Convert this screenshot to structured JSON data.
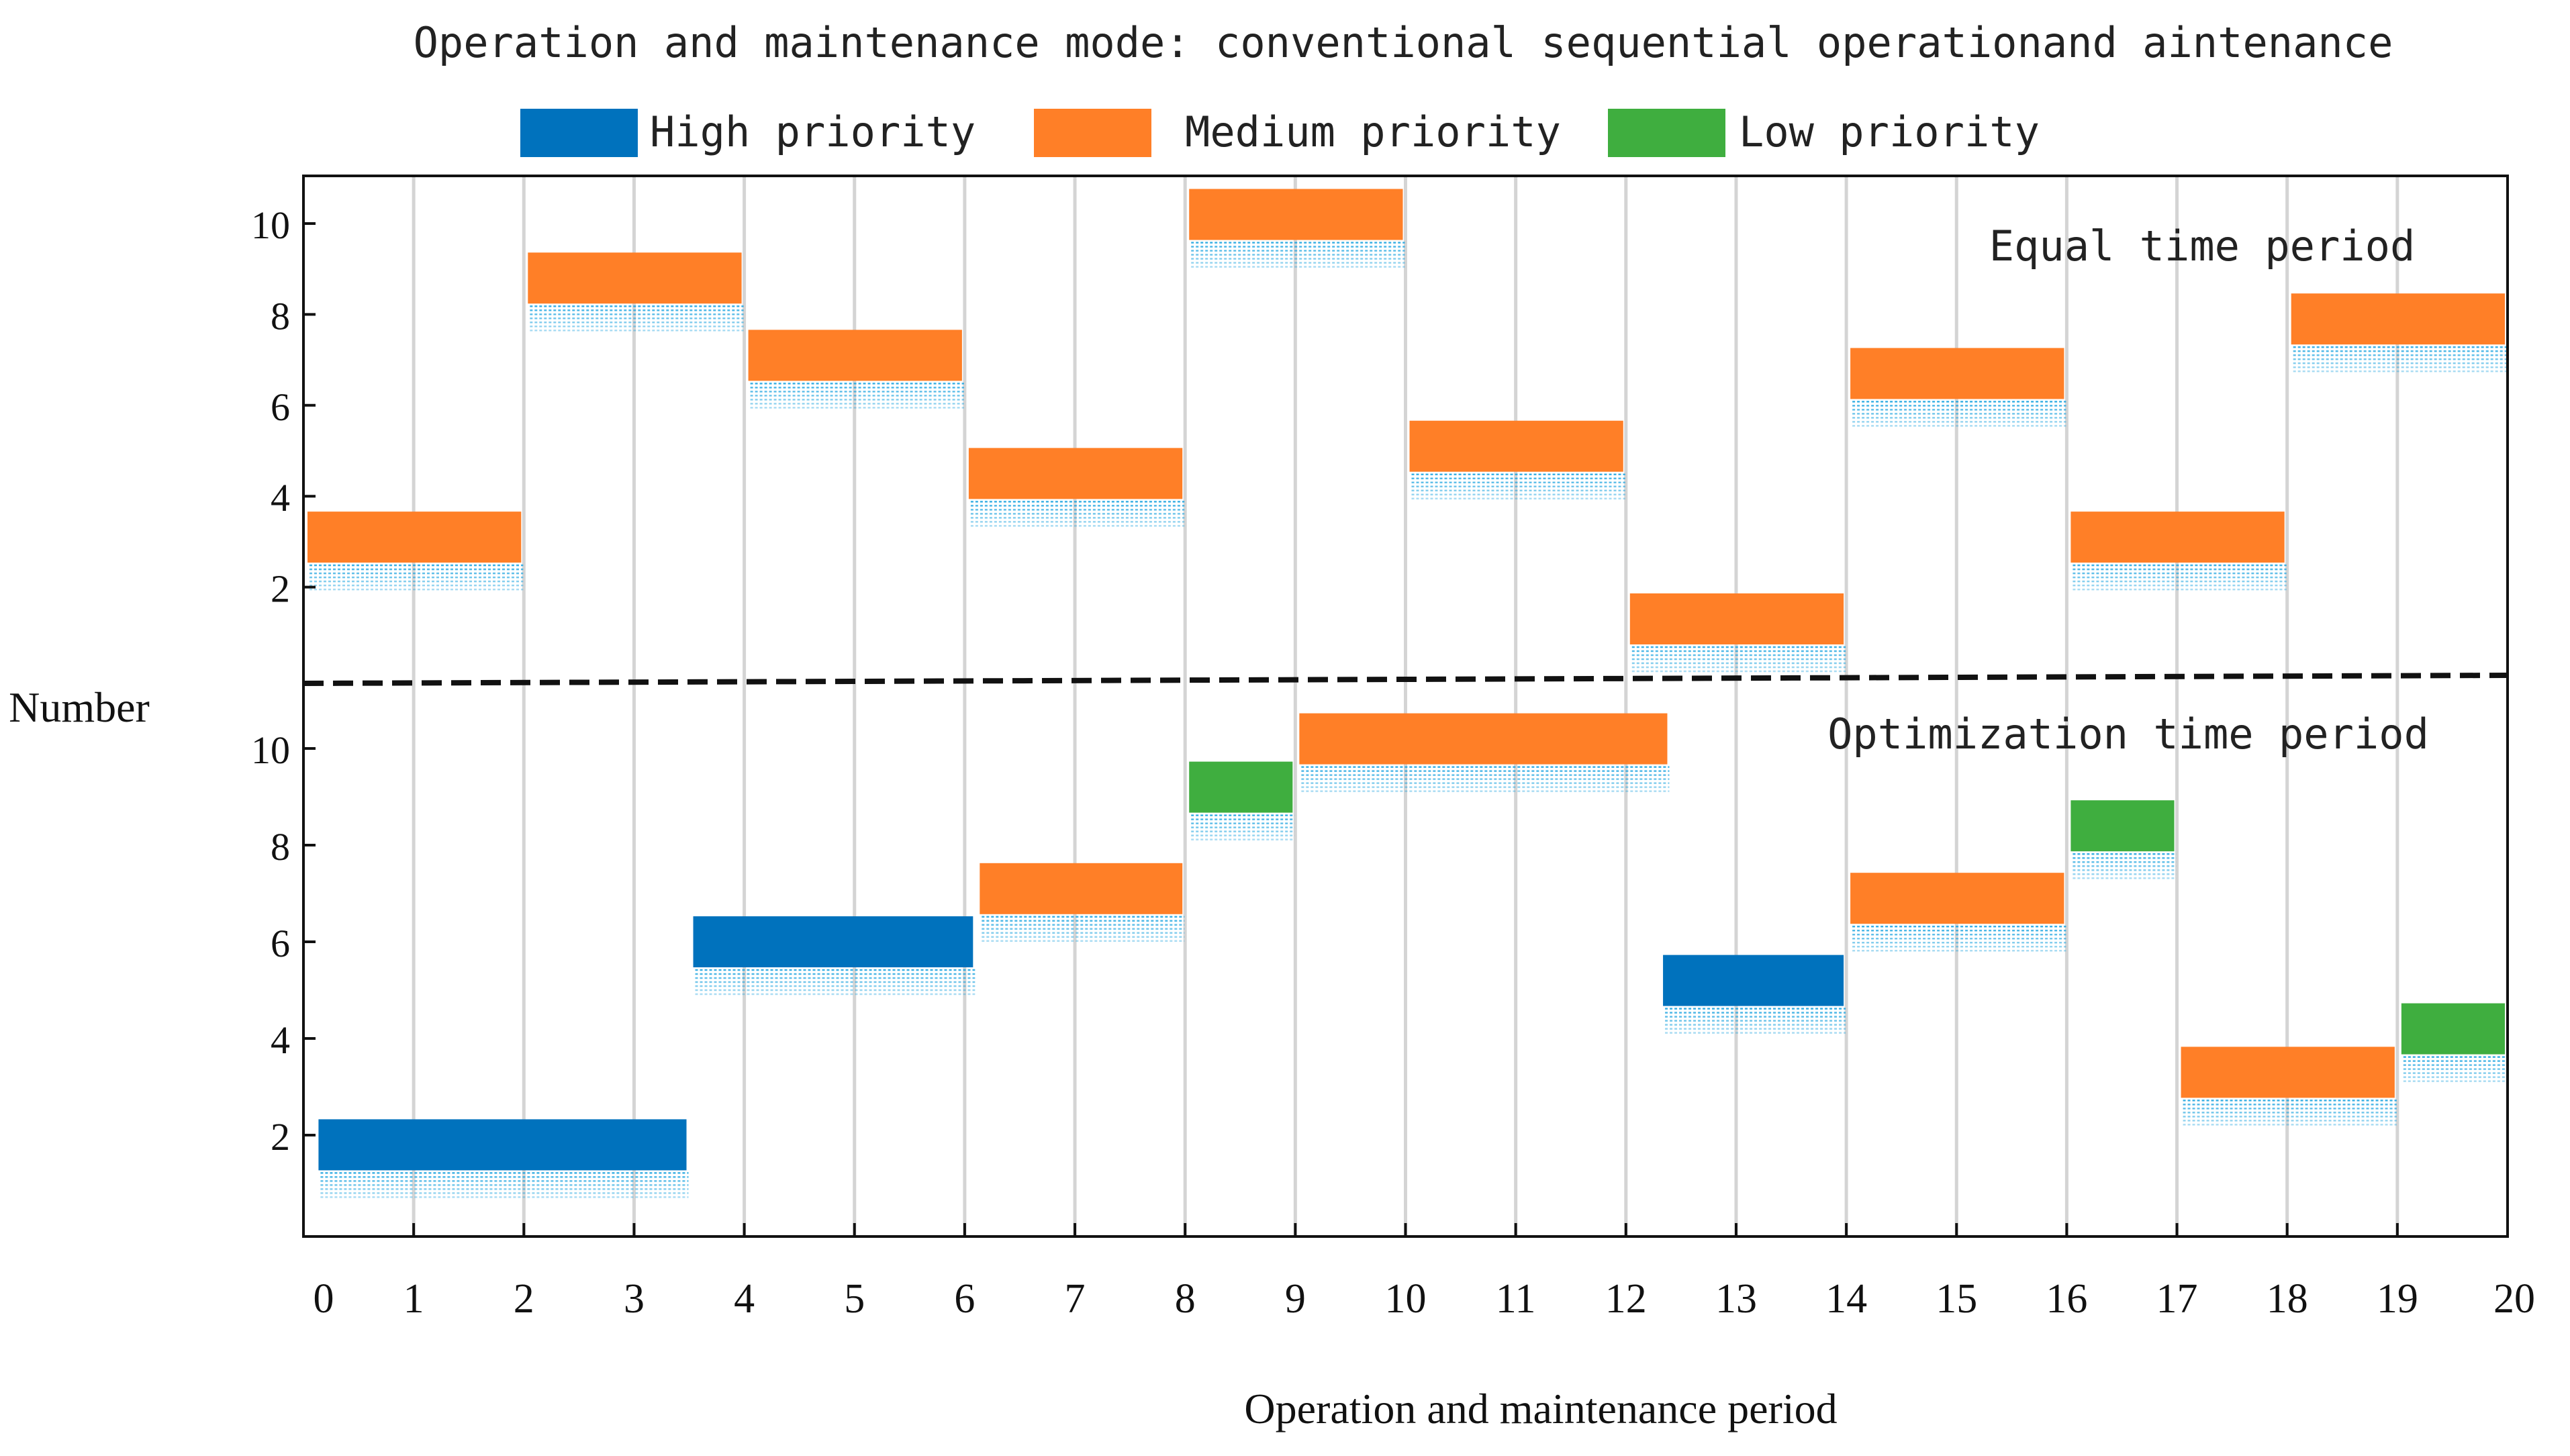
{
  "chart_data": {
    "type": "gantt",
    "title": "Operation and maintenance mode: conventional sequential operationand aintenance",
    "xlabel": "Operation and maintenance period",
    "ylabel": "Number",
    "xlim": [
      0,
      20
    ],
    "x_ticks": [
      "0",
      "1",
      "2",
      "3",
      "4",
      "5",
      "6",
      "7",
      "8",
      "9",
      "10",
      "11",
      "12",
      "13",
      "14",
      "15",
      "16",
      "17",
      "18",
      "19",
      "20"
    ],
    "colors": {
      "high": "#0072BD",
      "medium": "#FF7F27",
      "low": "#3FAE3F",
      "shadow": "#1AA3E0"
    },
    "legend": [
      {
        "key": "high",
        "label": "High priority"
      },
      {
        "key": "medium",
        "label": "Medium priority"
      },
      {
        "key": "low",
        "label": "Low priority"
      }
    ],
    "panels": [
      {
        "label": "Equal time period",
        "ylim": [
          0,
          11
        ],
        "y_ticks": [
          "2",
          "4",
          "6",
          "8",
          "10"
        ],
        "tasks": [
          {
            "start": 0,
            "end": 2,
            "y": 3.1,
            "priority": "medium"
          },
          {
            "start": 2,
            "end": 4,
            "y": 8.8,
            "priority": "medium"
          },
          {
            "start": 4,
            "end": 6,
            "y": 7.1,
            "priority": "medium"
          },
          {
            "start": 6,
            "end": 8,
            "y": 4.5,
            "priority": "medium"
          },
          {
            "start": 8,
            "end": 10,
            "y": 10.2,
            "priority": "medium"
          },
          {
            "start": 10,
            "end": 12,
            "y": 5.1,
            "priority": "medium"
          },
          {
            "start": 12,
            "end": 14,
            "y": 1.3,
            "priority": "medium"
          },
          {
            "start": 14,
            "end": 16,
            "y": 6.7,
            "priority": "medium"
          },
          {
            "start": 16,
            "end": 18,
            "y": 3.1,
            "priority": "medium"
          },
          {
            "start": 18,
            "end": 20,
            "y": 7.9,
            "priority": "medium"
          }
        ]
      },
      {
        "label": "Optimization time period",
        "ylim": [
          0,
          11
        ],
        "y_ticks": [
          "2",
          "4",
          "6",
          "8",
          "10"
        ],
        "tasks": [
          {
            "start": 0.1,
            "end": 3.5,
            "y": 1.8,
            "priority": "high"
          },
          {
            "start": 3.5,
            "end": 6.1,
            "y": 6.0,
            "priority": "high"
          },
          {
            "start": 6.1,
            "end": 8,
            "y": 7.1,
            "priority": "medium"
          },
          {
            "start": 8,
            "end": 9,
            "y": 9.2,
            "priority": "low"
          },
          {
            "start": 9,
            "end": 12.4,
            "y": 10.2,
            "priority": "medium"
          },
          {
            "start": 12.3,
            "end": 14,
            "y": 5.2,
            "priority": "high"
          },
          {
            "start": 14,
            "end": 16,
            "y": 6.9,
            "priority": "medium"
          },
          {
            "start": 16,
            "end": 17,
            "y": 8.4,
            "priority": "low"
          },
          {
            "start": 17,
            "end": 19,
            "y": 3.3,
            "priority": "medium"
          },
          {
            "start": 19,
            "end": 20,
            "y": 4.2,
            "priority": "low"
          }
        ]
      }
    ]
  }
}
